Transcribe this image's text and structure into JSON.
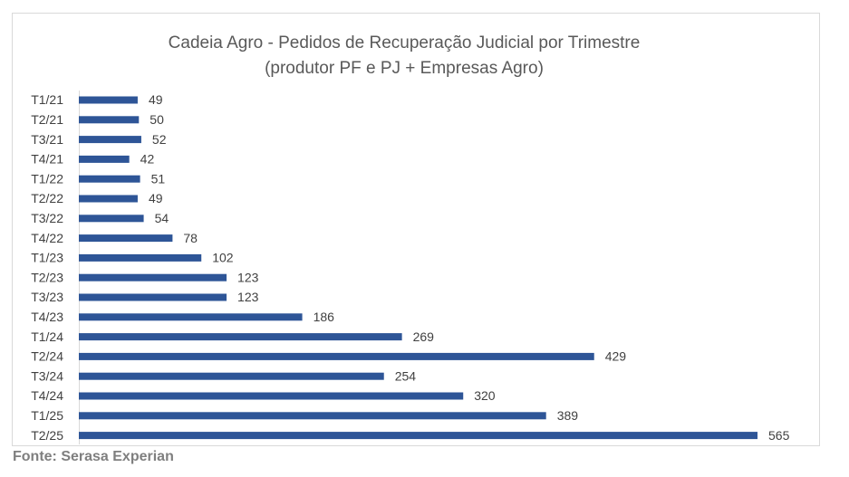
{
  "chart_data": {
    "type": "bar",
    "orientation": "horizontal",
    "title": "Cadeia Agro - Pedidos de Recuperação Judicial por Trimestre",
    "subtitle": "(produtor PF e PJ + Empresas Agro)",
    "categories": [
      "T1/21",
      "T2/21",
      "T3/21",
      "T4/21",
      "T1/22",
      "T2/22",
      "T3/22",
      "T4/22",
      "T1/23",
      "T2/23",
      "T3/23",
      "T4/23",
      "T1/24",
      "T2/24",
      "T3/24",
      "T4/24",
      "T1/25",
      "T2/25"
    ],
    "values": [
      49,
      50,
      52,
      42,
      51,
      49,
      54,
      78,
      102,
      123,
      123,
      186,
      269,
      429,
      254,
      320,
      389,
      565
    ],
    "color": "#2e5597",
    "source": "Fonte: Serasa Experian"
  }
}
